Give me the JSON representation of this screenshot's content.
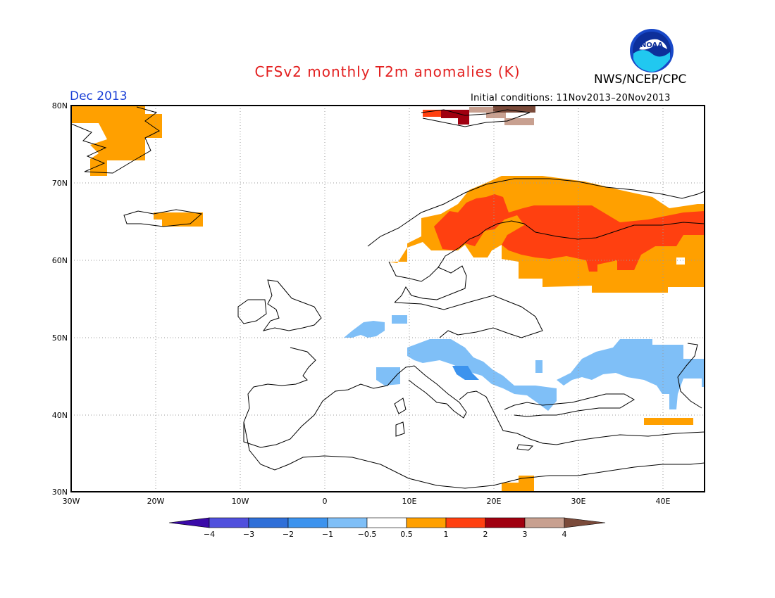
{
  "title": "CFSv2 monthly T2m anomalies (K)",
  "agency": "NWS/NCEP/CPC",
  "logo_text": "NOAA",
  "month": "Dec 2013",
  "initial_conditions": "Initial conditions: 11Nov2013–20Nov2013",
  "lat_labels": [
    "80N",
    "70N",
    "60N",
    "50N",
    "40N",
    "30N"
  ],
  "lon_labels": [
    "30W",
    "20W",
    "10W",
    "0",
    "10E",
    "20E",
    "30E",
    "40E"
  ],
  "colorbar": {
    "colors": [
      "#3a0aa8",
      "#5050dd",
      "#2f6fd8",
      "#3c93ee",
      "#7fbff7",
      "#ffffff",
      "#ffa000",
      "#ff4010",
      "#a00010",
      "#c8a090",
      "#7a4a3a"
    ],
    "labels": [
      "−4",
      "−3",
      "−2",
      "−1",
      "−0.5",
      "0.5",
      "1",
      "2",
      "3",
      "4"
    ]
  },
  "chart_data": {
    "type": "heatmap",
    "variable": "T2m anomaly",
    "units": "K",
    "region_lon": [
      -30,
      45
    ],
    "region_lat": [
      30,
      80
    ],
    "anomaly_areas": [
      {
        "region": "Greenland east coast",
        "category": "0.5 to 1"
      },
      {
        "region": "Iceland",
        "category": "0.5 to 1"
      },
      {
        "region": "Svalbard",
        "category": "1 to 4"
      },
      {
        "region": "Scandinavia",
        "category": "0.5 to 2"
      },
      {
        "region": "Western Russia",
        "category": "0.5 to 2"
      },
      {
        "region": "Benelux",
        "category": "-1 to -0.5"
      },
      {
        "region": "Alps / Balkans / Black Sea",
        "category": "-2 to -0.5"
      },
      {
        "region": "Southern Russia / Caspian",
        "category": "-1 to -0.5"
      },
      {
        "region": "Eastern Turkey",
        "category": "0.5 to 1"
      },
      {
        "region": "Eastern Mediterranean (Crete)",
        "category": "0.5 to 1"
      }
    ]
  }
}
